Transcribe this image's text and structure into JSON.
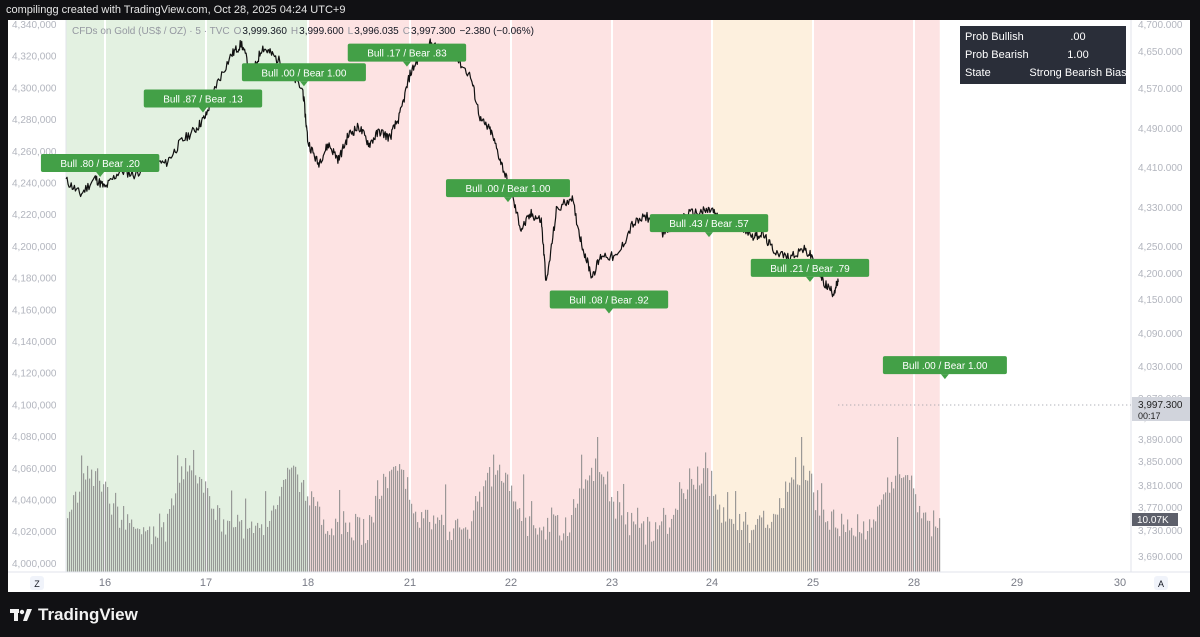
{
  "header": {
    "caption": "compilingg created with TradingView.com, Oct 28, 2025 04:24 UTC+9"
  },
  "footer": {
    "brand": "TradingView"
  },
  "chart_data": {
    "type": "line",
    "symbol": "CFDs on Gold (US$ / OZ) · 5 · TVC",
    "ohlc": {
      "open_label": "O",
      "open": "3,999.360",
      "high_label": "H",
      "high": "3,999.600",
      "low_label": "L",
      "low": "3,996.035",
      "close_label": "C",
      "close": "3,997.300",
      "change": "−2.380 (−0.06%)"
    },
    "x_ticks": [
      "16",
      "17",
      "18",
      "21",
      "22",
      "23",
      "24",
      "25",
      "28",
      "29",
      "30"
    ],
    "left_axis_ticks": [
      "4,340,000",
      "4,320,000",
      "4,300,000",
      "4,280,000",
      "4,260,000",
      "4,240,000",
      "4,220,000",
      "4,200,000",
      "4,180,000",
      "4,160,000",
      "4,140,000",
      "4,120,000",
      "4,100,000",
      "4,080,000",
      "4,060,000",
      "4,040,000",
      "4,020,000",
      "4,000,000"
    ],
    "right_axis_ticks": [
      "4,700.000",
      "4,650.000",
      "4,570.000",
      "4,490.000",
      "4,410.000",
      "4,330.000",
      "4,250.000",
      "4,200.000",
      "4,150.000",
      "4,090.000",
      "4,030.000",
      "3,970.000",
      "3,930.000",
      "3,890.000",
      "3,850.000",
      "3,810.000",
      "3,770.000",
      "3,730.000",
      "3,690.000"
    ],
    "price_badge": {
      "value": "3,997.300",
      "countdown": "00:17"
    },
    "volume_badge": "10.07K",
    "axis_buttons": {
      "left": "Z",
      "right": "A"
    },
    "regime_bands": [
      {
        "start_day": 15.6,
        "end_day": 18.0,
        "regime": "bullish",
        "color": "#e3f1e1"
      },
      {
        "start_day": 18.0,
        "end_day": 24.0,
        "regime": "bearish",
        "color": "#fde3e3"
      },
      {
        "start_day": 24.0,
        "end_day": 25.0,
        "regime": "neutral",
        "color": "#fdf0de"
      },
      {
        "start_day": 25.0,
        "end_day": 28.25,
        "regime": "bearish",
        "color": "#fde3e3"
      }
    ],
    "session_dividers": [
      "16",
      "17",
      "18",
      "21",
      "22",
      "23",
      "24",
      "25",
      "28"
    ],
    "price_path": [
      [
        15.6,
        4203
      ],
      [
        15.75,
        4190
      ],
      [
        15.9,
        4205
      ],
      [
        16.0,
        4196
      ],
      [
        16.15,
        4212
      ],
      [
        16.3,
        4208
      ],
      [
        16.45,
        4222
      ],
      [
        16.6,
        4218
      ],
      [
        16.75,
        4238
      ],
      [
        16.9,
        4250
      ],
      [
        17.0,
        4262
      ],
      [
        17.1,
        4290
      ],
      [
        17.25,
        4318
      ],
      [
        17.35,
        4328
      ],
      [
        17.45,
        4298
      ],
      [
        17.55,
        4325
      ],
      [
        17.65,
        4318
      ],
      [
        17.8,
        4305
      ],
      [
        17.95,
        4285
      ],
      [
        18.0,
        4238
      ],
      [
        18.1,
        4218
      ],
      [
        18.2,
        4236
      ],
      [
        18.3,
        4222
      ],
      [
        18.4,
        4245
      ],
      [
        18.5,
        4252
      ],
      [
        18.6,
        4236
      ],
      [
        18.7,
        4248
      ],
      [
        18.8,
        4242
      ],
      [
        18.9,
        4262
      ],
      [
        19.0,
        4300
      ],
      [
        19.1,
        4318
      ],
      [
        19.2,
        4328
      ],
      [
        19.3,
        4322
      ],
      [
        19.45,
        4316
      ],
      [
        19.6,
        4298
      ],
      [
        19.7,
        4258
      ],
      [
        19.8,
        4248
      ],
      [
        19.9,
        4220
      ],
      [
        20.0,
        4192
      ],
      [
        20.1,
        4158
      ],
      [
        20.2,
        4172
      ],
      [
        20.3,
        4166
      ],
      [
        20.35,
        4108
      ],
      [
        20.45,
        4175
      ],
      [
        20.6,
        4188
      ],
      [
        20.7,
        4145
      ],
      [
        20.8,
        4115
      ],
      [
        20.9,
        4135
      ],
      [
        21.05,
        4132
      ],
      [
        21.2,
        4162
      ],
      [
        21.35,
        4170
      ],
      [
        21.5,
        4155
      ],
      [
        21.6,
        4162
      ],
      [
        21.75,
        4172
      ],
      [
        21.9,
        4174
      ],
      [
        22.0,
        4176
      ],
      [
        22.1,
        4162
      ],
      [
        22.25,
        4165
      ],
      [
        22.4,
        4152
      ],
      [
        22.5,
        4154
      ],
      [
        22.6,
        4140
      ],
      [
        22.75,
        4132
      ],
      [
        22.9,
        4140
      ],
      [
        23.0,
        4132
      ],
      [
        23.1,
        4110
      ],
      [
        23.2,
        4100
      ],
      [
        23.25,
        4110
      ]
    ],
    "volume_profile": "synthetic bar field beneath price, heights within bottom pane",
    "annotations": [
      {
        "label": "Bull .80 / Bear .20",
        "day": 15.95,
        "anchor_price": 4206
      },
      {
        "label": "Bull .87 / Bear .13",
        "day": 16.97,
        "anchor_price": 4265
      },
      {
        "label": "Bull .00 / Bear 1.00",
        "day": 17.96,
        "anchor_price": 4289
      },
      {
        "label": "Bull .17 / Bear .83",
        "day": 18.97,
        "anchor_price": 4307
      },
      {
        "label": "Bull .00 / Bear 1.00",
        "day": 19.97,
        "anchor_price": 4183
      },
      {
        "label": "Bull .08 / Bear .92",
        "day": 20.97,
        "anchor_price": 4081
      },
      {
        "label": "Bull .43 / Bear .57",
        "day": 21.97,
        "anchor_price": 4151
      },
      {
        "label": "Bull .21 / Bear .79",
        "day": 22.97,
        "anchor_price": 4110
      },
      {
        "label": "Bull .00 / Bear 1.00",
        "day": 24.3,
        "anchor_price": 4021
      }
    ],
    "info_table": {
      "rows": [
        {
          "label": "Prob Bullish",
          "value": ".00"
        },
        {
          "label": "Prob Bearish",
          "value": "1.00"
        },
        {
          "label": "State",
          "value": "Strong Bearish Bias"
        }
      ]
    },
    "colors": {
      "price_line": "#111111",
      "label_bg": "#43a047",
      "label_text": "#ffffff",
      "table_bg": "#2a2e39",
      "table_text": "#ffffff",
      "axis_text": "#b2b5be",
      "volume_bar": "#8a8a8a",
      "divider": "#ffffff"
    }
  }
}
